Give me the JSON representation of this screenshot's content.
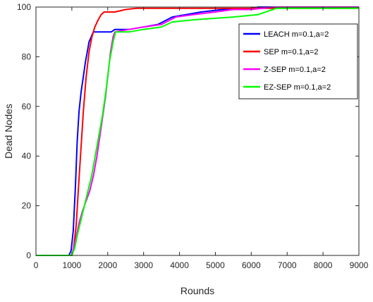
{
  "chart_data": {
    "type": "line",
    "title": "",
    "xlabel": "Rounds",
    "ylabel": "Dead Nodes",
    "xlim": [
      0,
      9000
    ],
    "ylim": [
      0,
      100
    ],
    "xticks": [
      "0",
      "1000",
      "2000",
      "3000",
      "4000",
      "5000",
      "6000",
      "7000",
      "8000",
      "9000"
    ],
    "yticks": [
      "0",
      "20",
      "40",
      "60",
      "80",
      "100"
    ],
    "grid": false,
    "legend_position": "top-right",
    "series": [
      {
        "name": "LEACH  m=0.1,a=2",
        "color": "#0000ff",
        "points": [
          [
            0,
            0
          ],
          [
            920,
            0
          ],
          [
            980,
            2
          ],
          [
            1040,
            10
          ],
          [
            1100,
            28
          ],
          [
            1150,
            46
          ],
          [
            1200,
            58
          ],
          [
            1260,
            66
          ],
          [
            1320,
            72
          ],
          [
            1380,
            78
          ],
          [
            1430,
            82
          ],
          [
            1480,
            86
          ],
          [
            1540,
            88
          ],
          [
            1600,
            90
          ],
          [
            1800,
            90
          ],
          [
            2100,
            90
          ],
          [
            2200,
            91
          ],
          [
            2600,
            91
          ],
          [
            3000,
            92
          ],
          [
            3400,
            93
          ],
          [
            3800,
            96
          ],
          [
            4200,
            97
          ],
          [
            4600,
            98
          ],
          [
            5200,
            99
          ],
          [
            5800,
            99
          ],
          [
            6200,
            100
          ],
          [
            9000,
            100
          ]
        ]
      },
      {
        "name": "SEP  m=0.1,a=2",
        "color": "#ff0000",
        "points": [
          [
            0,
            0
          ],
          [
            1000,
            0
          ],
          [
            1050,
            3
          ],
          [
            1120,
            12
          ],
          [
            1180,
            26
          ],
          [
            1250,
            42
          ],
          [
            1320,
            58
          ],
          [
            1400,
            72
          ],
          [
            1480,
            82
          ],
          [
            1560,
            88
          ],
          [
            1640,
            92
          ],
          [
            1740,
            95
          ],
          [
            1820,
            97
          ],
          [
            1900,
            98
          ],
          [
            2200,
            98
          ],
          [
            2500,
            99
          ],
          [
            2800,
            99.5
          ],
          [
            9000,
            99.5
          ]
        ]
      },
      {
        "name": "Z-SEP  m=0.1,a=2",
        "color": "#ff00ff",
        "points": [
          [
            0,
            0
          ],
          [
            1000,
            0
          ],
          [
            1100,
            6
          ],
          [
            1200,
            13
          ],
          [
            1300,
            18
          ],
          [
            1400,
            22
          ],
          [
            1500,
            26
          ],
          [
            1600,
            32
          ],
          [
            1700,
            40
          ],
          [
            1780,
            48
          ],
          [
            1860,
            56
          ],
          [
            1940,
            64
          ],
          [
            2000,
            72
          ],
          [
            2080,
            82
          ],
          [
            2150,
            88
          ],
          [
            2200,
            90
          ],
          [
            2600,
            91
          ],
          [
            3000,
            92
          ],
          [
            3500,
            93
          ],
          [
            3900,
            96
          ],
          [
            4400,
            97
          ],
          [
            5000,
            98
          ],
          [
            5500,
            99
          ],
          [
            6000,
            99
          ],
          [
            6600,
            100
          ],
          [
            9000,
            100
          ]
        ]
      },
      {
        "name": "EZ-SEP  m=0.1,a=2",
        "color": "#00ff00",
        "points": [
          [
            0,
            0
          ],
          [
            1000,
            0
          ],
          [
            1080,
            3
          ],
          [
            1150,
            8
          ],
          [
            1250,
            14
          ],
          [
            1350,
            20
          ],
          [
            1450,
            26
          ],
          [
            1550,
            32
          ],
          [
            1650,
            40
          ],
          [
            1750,
            48
          ],
          [
            1850,
            56
          ],
          [
            1950,
            66
          ],
          [
            2050,
            78
          ],
          [
            2150,
            86
          ],
          [
            2220,
            90
          ],
          [
            2600,
            90
          ],
          [
            3000,
            91
          ],
          [
            3500,
            92
          ],
          [
            3800,
            94
          ],
          [
            4500,
            95
          ],
          [
            5500,
            96
          ],
          [
            6200,
            97
          ],
          [
            6600,
            99
          ],
          [
            6700,
            99.5
          ],
          [
            9000,
            99.5
          ]
        ]
      }
    ]
  }
}
